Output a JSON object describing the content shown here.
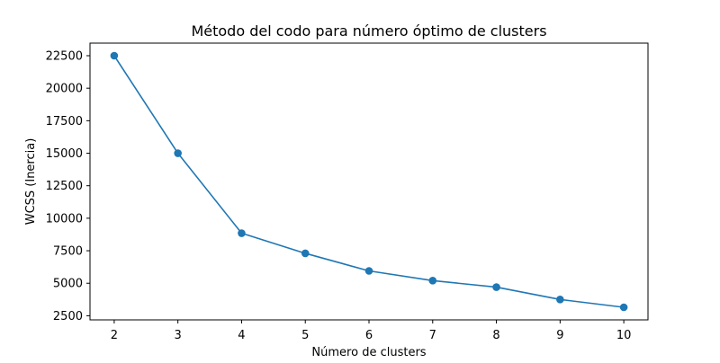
{
  "chart_data": {
    "type": "line",
    "title": "Método del codo para número óptimo de clusters",
    "xlabel": "Número de clusters",
    "ylabel": "WCSS (Inercia)",
    "x": [
      2,
      3,
      4,
      5,
      6,
      7,
      8,
      9,
      10
    ],
    "series": [
      {
        "values": [
          22500,
          15000,
          8850,
          7300,
          5950,
          5200,
          4700,
          3750,
          3150
        ],
        "color": "#1f77b4",
        "marker": "circle"
      }
    ],
    "xticks": [
      "2",
      "3",
      "4",
      "5",
      "6",
      "7",
      "8",
      "9",
      "10"
    ],
    "yticks": [
      "2500",
      "5000",
      "7500",
      "10000",
      "12500",
      "15000",
      "17500",
      "20000",
      "22500"
    ],
    "xlim": [
      1.62,
      10.38
    ],
    "ylim": [
      2183,
      23467
    ],
    "grid": false,
    "legend": "none"
  }
}
